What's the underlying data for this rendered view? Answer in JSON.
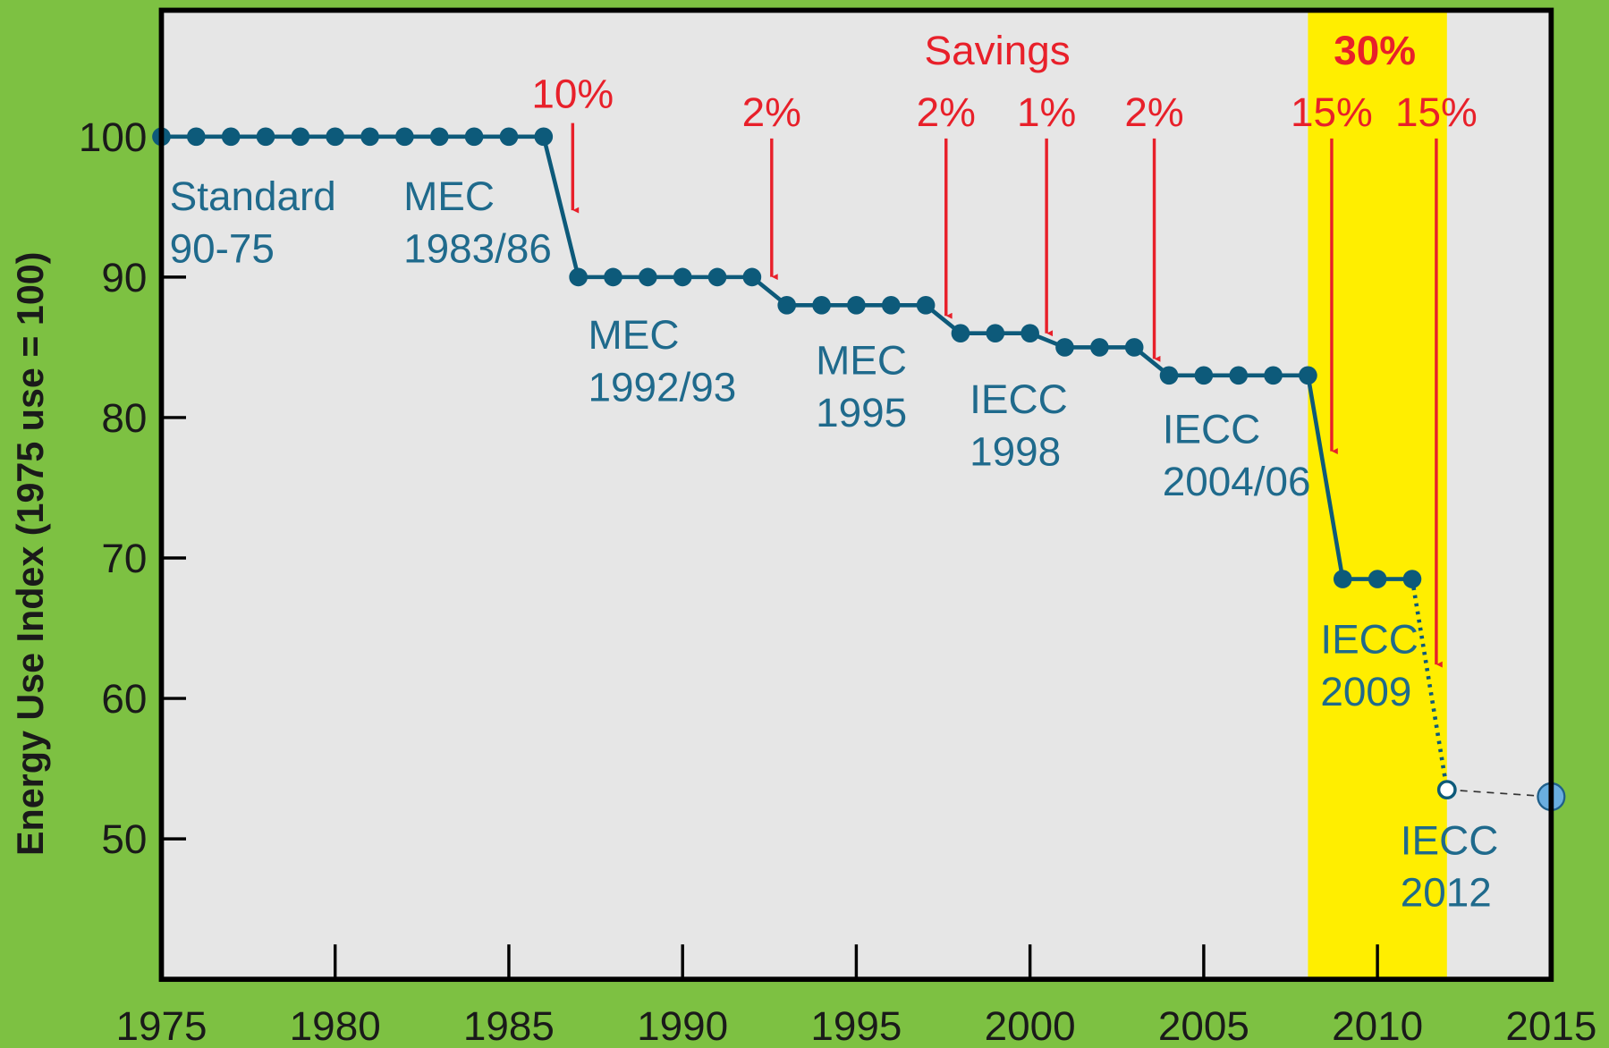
{
  "chart_data": {
    "type": "line",
    "y_label": "Energy Use Index (1975 use = 100)",
    "xlim": [
      1975,
      2015
    ],
    "xticks": [
      1975,
      1980,
      1985,
      1990,
      1995,
      2000,
      2005,
      2010,
      2015
    ],
    "ylim": [
      40,
      109
    ],
    "yticks": [
      50,
      60,
      70,
      80,
      90,
      100
    ],
    "highlight": {
      "x": [
        2008,
        2012
      ],
      "color": "#ffee00"
    },
    "series": [
      {
        "color": "#0d5a7a",
        "style": "solid",
        "marker": "filled",
        "marker_on": "all",
        "x": [
          1975,
          1976,
          1977,
          1978,
          1979,
          1980,
          1981,
          1982,
          1983,
          1984,
          1985,
          1986,
          1987,
          1988,
          1989,
          1990,
          1991,
          1992,
          1993,
          1994,
          1995,
          1996,
          1997,
          1998,
          1999,
          2000,
          2001,
          2002,
          2003,
          2004,
          2005,
          2006,
          2007,
          2008,
          2009,
          2010,
          2011
        ],
        "values": [
          100,
          100,
          100,
          100,
          100,
          100,
          100,
          100,
          100,
          100,
          100,
          100,
          90,
          90,
          90,
          90,
          90,
          90,
          88,
          88,
          88,
          88,
          88,
          86,
          86,
          86,
          85,
          85,
          85,
          83,
          83,
          83,
          83,
          83,
          68.5,
          68.5,
          68.5
        ]
      },
      {
        "color": "#0d5a7a",
        "style": "dotted",
        "marker": "open",
        "marker_on": "last",
        "x": [
          2011,
          2012
        ],
        "values": [
          68.5,
          53.5
        ]
      },
      {
        "color": "#333333",
        "style": "dashed",
        "marker": "large",
        "marker_color": "#6aaee0",
        "marker_on": "last",
        "x": [
          2012,
          2015
        ],
        "values": [
          53.5,
          53
        ]
      }
    ],
    "codes": [
      [
        "Standard",
        "90-75"
      ],
      [
        "MEC",
        "1983/86"
      ],
      [
        "MEC",
        "1992/93"
      ],
      [
        "MEC",
        "1995"
      ],
      [
        "IECC",
        "1998"
      ],
      [
        "IECC",
        "2004/06"
      ],
      [
        "IECC",
        "2009"
      ],
      [
        "IECC",
        "2012"
      ]
    ],
    "savings_title": "Savings",
    "savings_total": "30%",
    "savings": [
      "10%",
      "2%",
      "2%",
      "1%",
      "2%",
      "15%",
      "15%"
    ]
  }
}
